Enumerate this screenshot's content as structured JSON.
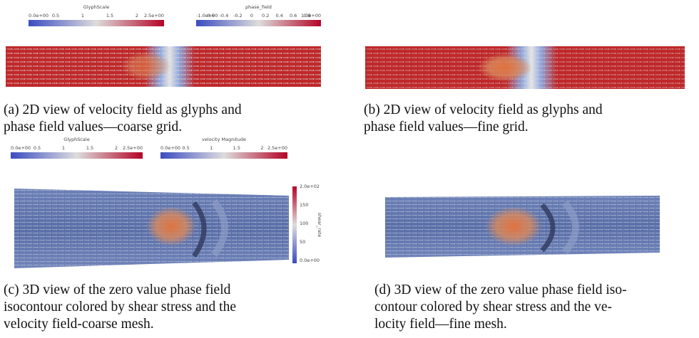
{
  "panel_a": {
    "colorbars": [
      {
        "title": "GlyphScale",
        "ticks": [
          "0.0e+00",
          "0.5",
          "1",
          "1.5",
          "2",
          "2.5e+00"
        ]
      },
      {
        "title": "phase_field",
        "ticks": [
          "-1.0e+00",
          "-0.6",
          "-0.4",
          "-0.2",
          "0",
          "0.2",
          "0.4",
          "0.6",
          "0.8",
          "1.0e+00"
        ]
      }
    ],
    "caption": [
      "(a) 2D view of velocity field as glyphs and",
      "phase field values—coarse grid."
    ]
  },
  "panel_b": {
    "caption": [
      "(b) 2D view of velocity field as glyphs and",
      "phase field values—fine grid."
    ]
  },
  "panel_c": {
    "colorbars": [
      {
        "title": "GlyphScale",
        "ticks": [
          "0.0e+00",
          "0.5",
          "1",
          "1.5",
          "2",
          "2.5e+00"
        ]
      },
      {
        "title": "velocity Magnitude",
        "ticks": [
          "0.0e+00",
          "0.5",
          "1",
          "1.5",
          "2",
          "2.5e+00"
        ]
      },
      {
        "title": "shear_rate",
        "ticks": [
          "2.0e+02",
          "150",
          "100",
          "50",
          "0.0e+00"
        ]
      }
    ],
    "caption": [
      "(c) 3D view of the zero value phase field",
      "isocontour colored by shear stress and the",
      "velocity field-coarse mesh."
    ]
  },
  "panel_d": {
    "caption": [
      "(d) 3D view of the zero value phase field iso-",
      "contour colored by shear stress and the ve-",
      "locity field—fine mesh."
    ]
  }
}
